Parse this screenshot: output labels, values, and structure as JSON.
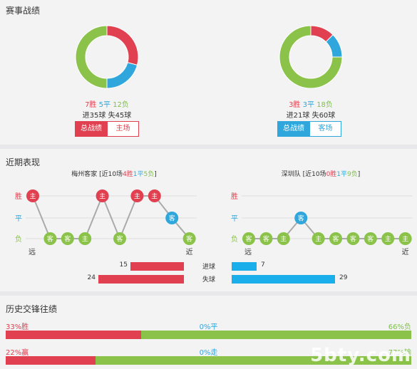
{
  "colors": {
    "win": "#e0404f",
    "draw": "#2fa6dc",
    "loss": "#8bc34a",
    "link": "#2fa6dc"
  },
  "record": {
    "title": "赛事战绩",
    "left": {
      "wins": "7胜",
      "draws": "5平",
      "losses": "12负",
      "goals": "进35球 失45球",
      "tab_all": "总战绩",
      "tab_venue": "主场",
      "pie": [
        7,
        5,
        12
      ]
    },
    "right": {
      "wins": "3胜",
      "draws": "3平",
      "losses": "18负",
      "goals": "进21球 失60球",
      "tab_all": "总战绩",
      "tab_venue": "客场",
      "pie": [
        3,
        3,
        18
      ]
    }
  },
  "recent": {
    "title": "近期表现",
    "left": {
      "team": "梅州客家",
      "summary_pre": "[近10场",
      "summary_w": "4胜",
      "summary_d": "1平",
      "summary_l": "5负",
      "summary_post": "]",
      "results": [
        "W",
        "L",
        "L",
        "L",
        "W",
        "L",
        "W",
        "W",
        "D",
        "L"
      ],
      "venues": [
        "主",
        "客",
        "客",
        "主",
        "主",
        "客",
        "主",
        "主",
        "客",
        "客"
      ]
    },
    "right": {
      "team": "深圳队",
      "summary_pre": "[近10场",
      "summary_w": "0胜",
      "summary_d": "1平",
      "summary_l": "9负",
      "summary_post": "]",
      "results": [
        "L",
        "L",
        "L",
        "D",
        "L",
        "L",
        "L",
        "L",
        "L",
        "L"
      ],
      "venues": [
        "客",
        "客",
        "主",
        "客",
        "主",
        "客",
        "客",
        "客",
        "主",
        "主"
      ]
    },
    "axis": {
      "win": "胜",
      "draw": "平",
      "loss": "负",
      "far": "远",
      "near": "近"
    },
    "goals_for_label": "进球",
    "goals_against_label": "失球",
    "left_for": 15,
    "left_against": 24,
    "right_for": 7,
    "right_against": 29
  },
  "history": {
    "title": "历史交锋往绩",
    "row1": {
      "left": "33%胜",
      "mid": "0%平",
      "right": "66%负",
      "left_pct": 33,
      "mid_pct": 0,
      "right_pct": 66
    },
    "row2": {
      "left": "22%赢",
      "mid": "0%走",
      "right": "77%输",
      "left_pct": 22,
      "mid_pct": 0,
      "right_pct": 77
    }
  },
  "watermark": "5bty.com"
}
